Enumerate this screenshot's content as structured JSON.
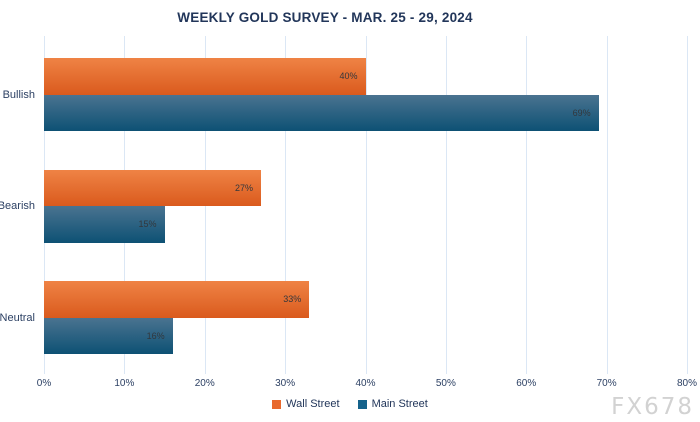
{
  "chart_data": {
    "type": "bar",
    "orientation": "horizontal",
    "title": "WEEKLY GOLD SURVEY - MAR. 25 - 29, 2024",
    "categories": [
      "Bullish",
      "Bearish",
      "Neutral"
    ],
    "series": [
      {
        "name": "Wall Street",
        "values": [
          40,
          27,
          33
        ],
        "color_top": "#ef8345",
        "color_bottom": "#da5a1d",
        "swatch_color": "#e8692d"
      },
      {
        "name": "Main Street",
        "values": [
          69,
          15,
          16
        ],
        "color_top": "#4a7390",
        "color_bottom": "#0d5174",
        "swatch_color": "#15628b"
      }
    ],
    "unit": "%",
    "xlim": [
      0,
      80
    ],
    "tick_values": [
      0,
      10,
      20,
      30,
      40,
      50,
      60,
      70,
      80
    ],
    "ticks": [
      "0%",
      "10%",
      "20%",
      "30%",
      "40%",
      "50%",
      "60%",
      "70%",
      "80%"
    ],
    "grid": true,
    "gridline_color": "#dbe7f5",
    "legend_position": "bottom",
    "value_label_color": "#33373c"
  },
  "watermark": "FX678"
}
